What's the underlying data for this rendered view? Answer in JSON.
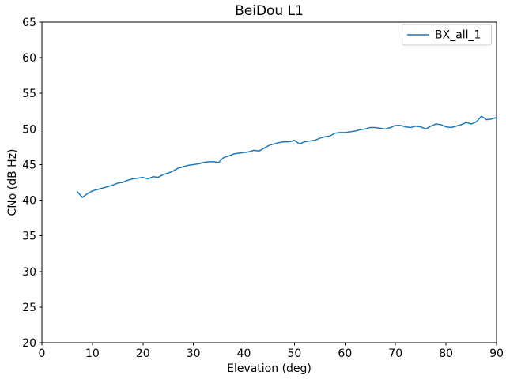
{
  "chart_data": {
    "type": "line",
    "title": "BeiDou L1",
    "xlabel": "Elevation (deg)",
    "ylabel": "CNo (dB Hz)",
    "xlim": [
      0,
      90
    ],
    "ylim": [
      20,
      65
    ],
    "xticks": [
      0,
      10,
      20,
      30,
      40,
      50,
      60,
      70,
      80,
      90
    ],
    "yticks": [
      20,
      25,
      30,
      35,
      40,
      45,
      50,
      55,
      60,
      65
    ],
    "grid": false,
    "legend": {
      "position": "upper-right",
      "entries": [
        "BX_all_1"
      ]
    },
    "colors": {
      "line": "#1f77b4",
      "spine": "#000000",
      "legend_border": "#cccccc",
      "background": "#ffffff"
    },
    "series": [
      {
        "name": "BX_all_1",
        "x": [
          7,
          8,
          9,
          10,
          11,
          12,
          13,
          14,
          15,
          16,
          17,
          18,
          19,
          20,
          21,
          22,
          23,
          24,
          25,
          26,
          27,
          28,
          29,
          30,
          31,
          32,
          33,
          34,
          35,
          36,
          37,
          38,
          39,
          40,
          41,
          42,
          43,
          44,
          45,
          46,
          47,
          48,
          49,
          50,
          51,
          52,
          53,
          54,
          55,
          56,
          57,
          58,
          59,
          60,
          61,
          62,
          63,
          64,
          65,
          66,
          67,
          68,
          69,
          70,
          71,
          72,
          73,
          74,
          75,
          76,
          77,
          78,
          79,
          80,
          81,
          82,
          83,
          84,
          85,
          86,
          87,
          88,
          89,
          90
        ],
        "y": [
          41.2,
          40.4,
          40.9,
          41.3,
          41.5,
          41.7,
          41.9,
          42.1,
          42.4,
          42.5,
          42.8,
          43.0,
          43.1,
          43.2,
          43.0,
          43.3,
          43.2,
          43.6,
          43.8,
          44.1,
          44.5,
          44.7,
          44.9,
          45.0,
          45.1,
          45.3,
          45.4,
          45.4,
          45.3,
          46.0,
          46.2,
          46.5,
          46.6,
          46.7,
          46.8,
          47.0,
          46.9,
          47.3,
          47.7,
          47.9,
          48.1,
          48.2,
          48.2,
          48.4,
          47.9,
          48.2,
          48.3,
          48.4,
          48.7,
          48.9,
          49.0,
          49.4,
          49.5,
          49.5,
          49.6,
          49.7,
          49.9,
          50.0,
          50.2,
          50.2,
          50.1,
          50.0,
          50.2,
          50.5,
          50.5,
          50.3,
          50.2,
          50.4,
          50.3,
          50.0,
          50.4,
          50.7,
          50.6,
          50.3,
          50.2,
          50.4,
          50.6,
          50.9,
          50.7,
          51.0,
          51.8,
          51.3,
          51.4,
          51.6
        ]
      }
    ]
  }
}
